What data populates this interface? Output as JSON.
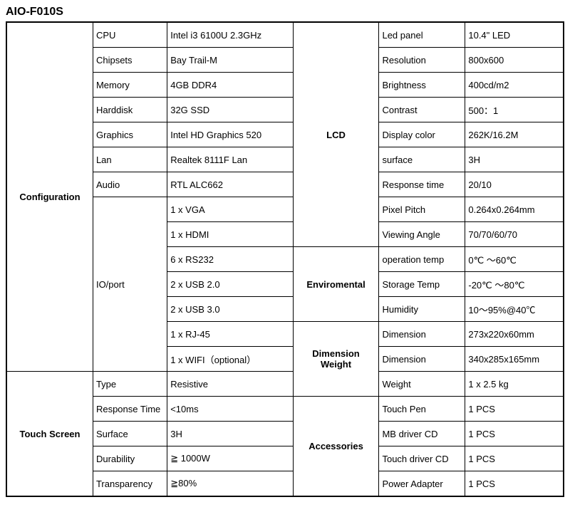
{
  "title": "AIO-F010S",
  "left": {
    "configuration": {
      "header": "Configuration",
      "cpu": {
        "label": "CPU",
        "value": "Intel i3 6100U 2.3GHz"
      },
      "chipsets": {
        "label": "Chipsets",
        "value": "Bay Trail-M"
      },
      "memory": {
        "label": "Memory",
        "value": "4GB DDR4"
      },
      "harddisk": {
        "label": "Harddisk",
        "value": "32G SSD"
      },
      "graphics": {
        "label": "Graphics",
        "value": "Intel HD Graphics 520"
      },
      "lan": {
        "label": "Lan",
        "value": "Realtek 8111F Lan"
      },
      "audio": {
        "label": "Audio",
        "value": "RTL ALC662"
      },
      "ioport": {
        "label": "IO/port",
        "values": [
          "1 x VGA",
          "1 x HDMI",
          "6 x RS232",
          "2 x USB 2.0",
          "2 x USB 3.0",
          "1 x RJ-45",
          "1 x WIFI（optional）"
        ]
      }
    },
    "touchscreen": {
      "header": "Touch Screen",
      "type": {
        "label": "Type",
        "value": "Resistive"
      },
      "response": {
        "label": "Response Time",
        "value": "<10ms"
      },
      "surface": {
        "label": "Surface",
        "value": "3H"
      },
      "durability": {
        "label": "Durability",
        "value": "≧ 1000W"
      },
      "transparency": {
        "label": "Transparency",
        "value": "≧80%"
      }
    }
  },
  "right": {
    "lcd": {
      "header": "LCD",
      "ledpanel": {
        "label": "Led panel",
        "value": "10.4\" LED"
      },
      "resolution": {
        "label": "Resolution",
        "value": "800x600"
      },
      "brightness": {
        "label": "Brightness",
        "value": "400cd/m2"
      },
      "contrast": {
        "label": "Contrast",
        "value": "500：1"
      },
      "displaycolor": {
        "label": "Display color",
        "value": "262K/16.2M"
      },
      "surface": {
        "label": "surface",
        "value": "3H"
      },
      "responsetime": {
        "label": "Response time",
        "value": "20/10"
      },
      "pixelpitch": {
        "label": "Pixel Pitch",
        "value": "0.264x0.264mm"
      },
      "viewingangle": {
        "label": "Viewing Angle",
        "value": "70/70/60/70"
      }
    },
    "environmental": {
      "header": "Enviromental",
      "optemp": {
        "label": "operation temp",
        "value": "  0℃ ～60℃"
      },
      "storagetemp": {
        "label": "Storage Temp",
        "value": " -20℃ ～80℃"
      },
      "humidity": {
        "label": "Humidity",
        "value": "10～95%@40℃"
      }
    },
    "dimension": {
      "header": "Dimension Weight",
      "dim1": {
        "label": "Dimension",
        "value": "273x220x60mm"
      },
      "dim2": {
        "label": "Dimension",
        "value": "340x285x165mm"
      },
      "weight": {
        "label": "Weight",
        "value": "1 x 2.5 kg"
      }
    },
    "accessories": {
      "header": "Accessories",
      "touchpen": {
        "label": "Touch Pen",
        "value": "1 PCS"
      },
      "mbdriver": {
        "label": "MB driver CD",
        "value": "1 PCS"
      },
      "touchdriver": {
        "label": "Touch driver CD",
        "value": "1 PCS"
      },
      "poweradapter": {
        "label": "Power Adapter",
        "value": "1 PCS"
      }
    }
  }
}
